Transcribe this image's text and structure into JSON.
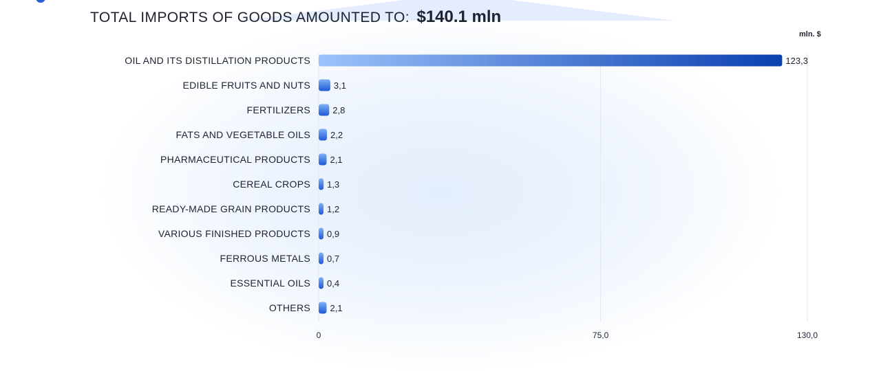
{
  "header": {
    "title_label": "TOTAL IMPORTS OF GOODS AMOUNTED TO:",
    "title_value": "$140.1 mln",
    "unit": "mln. $"
  },
  "colors": {
    "bar_start": "#9cc3fb",
    "bar_end": "#0a3fb0",
    "small_bar_start": "#7fb0f6",
    "small_bar_end": "#1f5ad6",
    "grid": "#e3e7ee",
    "text": "#1d2130"
  },
  "chart_data": {
    "type": "bar",
    "orientation": "horizontal",
    "title": "TOTAL IMPORTS OF GOODS AMOUNTED TO: $140.1 mln",
    "unit": "mln. $",
    "categories": [
      "OIL AND ITS DISTILLATION PRODUCTS",
      "EDIBLE FRUITS AND NUTS",
      "FERTILIZERS",
      "FATS AND VEGETABLE OILS",
      "PHARMACEUTICAL PRODUCTS",
      "CEREAL CROPS",
      "READY-MADE GRAIN PRODUCTS",
      "VARIOUS FINISHED PRODUCTS",
      "FERROUS METALS",
      "ESSENTIAL OILS",
      "OTHERS"
    ],
    "values": [
      123.3,
      3.1,
      2.8,
      2.2,
      2.1,
      1.3,
      1.2,
      0.9,
      0.7,
      0.4,
      2.1
    ],
    "value_labels": [
      "123,3",
      "3,1",
      "2,8",
      "2,2",
      "2,1",
      "1,3",
      "1,2",
      "0,9",
      "0,7",
      "0,4",
      "2,1"
    ],
    "xlim": [
      0,
      130
    ],
    "xticks": [
      0,
      75,
      130
    ],
    "xtick_labels": [
      "0",
      "75,0",
      "130,0"
    ],
    "grid": true
  }
}
